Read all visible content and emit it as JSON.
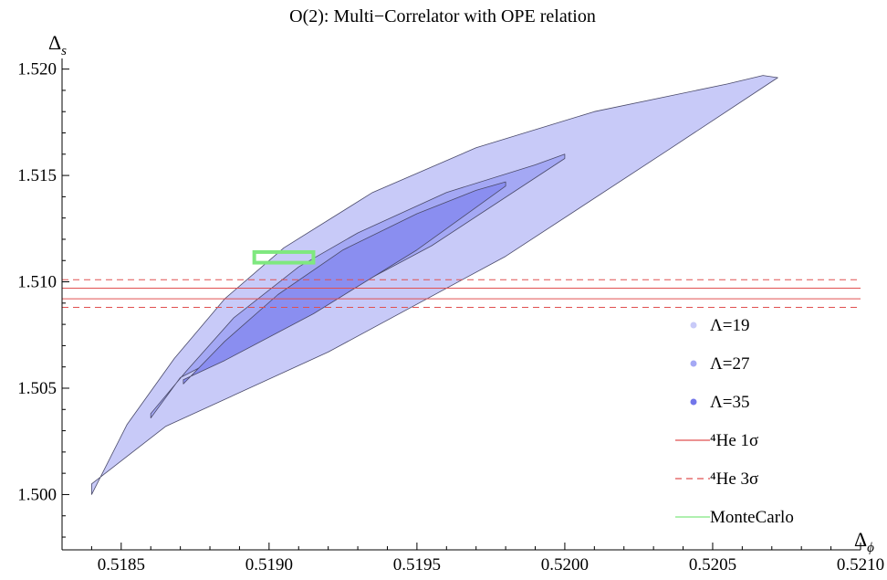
{
  "chart_data": {
    "type": "area",
    "title": "O(2): Multi−Correlator with OPE relation",
    "xlabel": "Δ",
    "xlabel_sub": "ϕ",
    "ylabel": "Δ",
    "ylabel_sub": "s",
    "xlim": [
      0.5183,
      0.521
    ],
    "ylim": [
      1.4974,
      1.5205
    ],
    "xticks": [
      "0.5185",
      "0.5190",
      "0.5195",
      "0.5200",
      "0.5205",
      "0.5210"
    ],
    "xtick_values": [
      0.5185,
      0.519,
      0.5195,
      0.52,
      0.5205,
      0.521
    ],
    "yticks": [
      "1.500",
      "1.505",
      "1.510",
      "1.515",
      "1.520"
    ],
    "ytick_values": [
      1.5,
      1.505,
      1.51,
      1.515,
      1.52
    ],
    "grid": false,
    "legend_position": "right",
    "regions": [
      {
        "name": "Λ=19",
        "color": "#c8caf8",
        "polygon": [
          [
            0.5184,
            1.5
          ],
          [
            0.51852,
            1.5033
          ],
          [
            0.51868,
            1.5064
          ],
          [
            0.51885,
            1.5092
          ],
          [
            0.51905,
            1.5116
          ],
          [
            0.51935,
            1.5142
          ],
          [
            0.5197,
            1.5163
          ],
          [
            0.5201,
            1.518
          ],
          [
            0.52055,
            1.5193
          ],
          [
            0.52067,
            1.5197
          ],
          [
            0.52072,
            1.5196
          ],
          [
            0.52035,
            1.5162
          ],
          [
            0.5198,
            1.5112
          ],
          [
            0.5192,
            1.5067
          ],
          [
            0.51865,
            1.5032
          ],
          [
            0.5184,
            1.5005
          ]
        ]
      },
      {
        "name": "Λ=27",
        "color": "#a4a8f4",
        "polygon": [
          [
            0.5186,
            1.5038
          ],
          [
            0.51872,
            1.5058
          ],
          [
            0.51888,
            1.5083
          ],
          [
            0.5191,
            1.5107
          ],
          [
            0.5193,
            1.5123
          ],
          [
            0.5196,
            1.5142
          ],
          [
            0.5199,
            1.5155
          ],
          [
            0.52,
            1.516
          ],
          [
            0.52,
            1.5158
          ],
          [
            0.51955,
            1.5117
          ],
          [
            0.51905,
            1.508
          ],
          [
            0.5187,
            1.5055
          ],
          [
            0.5186,
            1.5036
          ]
        ]
      },
      {
        "name": "Λ=35",
        "color": "#8a8ef0",
        "polygon": [
          [
            0.51871,
            1.5052
          ],
          [
            0.51885,
            1.5072
          ],
          [
            0.51903,
            1.5094
          ],
          [
            0.51925,
            1.5115
          ],
          [
            0.5195,
            1.5132
          ],
          [
            0.5197,
            1.5143
          ],
          [
            0.5198,
            1.5147
          ],
          [
            0.5198,
            1.5145
          ],
          [
            0.5195,
            1.5115
          ],
          [
            0.51915,
            1.5085
          ],
          [
            0.51885,
            1.5063
          ],
          [
            0.51871,
            1.5054
          ]
        ]
      }
    ],
    "lines": [
      {
        "name": "⁴He 1σ",
        "color": "#e05050",
        "style": "solid",
        "y": [
          1.5092,
          1.5097
        ]
      },
      {
        "name": "⁴He 3σ",
        "color": "#e05050",
        "style": "dashed",
        "y": [
          1.5088,
          1.5101
        ]
      }
    ],
    "boxes": [
      {
        "name": "MonteCarlo",
        "color": "#7fe87f",
        "x": [
          0.51895,
          0.51915
        ],
        "y": [
          1.5109,
          1.5114
        ]
      }
    ],
    "legend": [
      {
        "label": "Λ=19",
        "kind": "dot",
        "color": "#c8caf8"
      },
      {
        "label": "Λ=27",
        "kind": "dot",
        "color": "#a4a8f4"
      },
      {
        "label": "Λ=35",
        "kind": "dot",
        "color": "#7276ea"
      },
      {
        "label": "⁴He 1σ",
        "kind": "line",
        "color": "#e05050"
      },
      {
        "label": "⁴He 3σ",
        "kind": "dash",
        "color": "#e05050"
      },
      {
        "label": "MonteCarlo",
        "kind": "line",
        "color": "#7fe87f"
      }
    ]
  }
}
